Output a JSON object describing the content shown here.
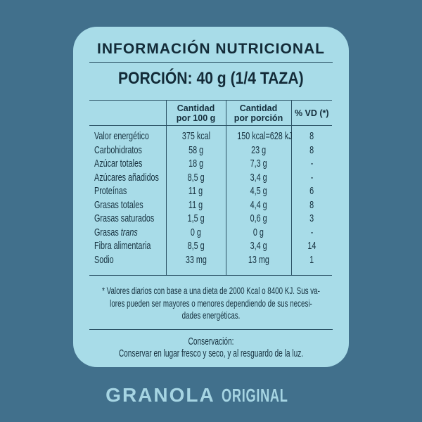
{
  "card": {
    "title": "INFORMACIÓN NUTRICIONAL",
    "portion": "PORCIÓN: 40 g (1/4 TAZA)"
  },
  "table": {
    "headers": [
      "",
      "Cantidad\npor 100 g",
      "Cantidad\npor porción",
      "% VD (*)"
    ],
    "rows": [
      {
        "label": "Valor energético",
        "per100": "375 kcal",
        "portion": "150 kcal=628 kJ",
        "vd": "8"
      },
      {
        "label": "Carbohidratos",
        "per100": "58 g",
        "portion": "23 g",
        "vd": "8"
      },
      {
        "label": "Azúcar totales",
        "per100": "18 g",
        "portion": "7,3 g",
        "vd": "-"
      },
      {
        "label": "Azúcares añadidos",
        "per100": "8,5 g",
        "portion": "3,4 g",
        "vd": "-"
      },
      {
        "label": "Proteínas",
        "per100": "11 g",
        "portion": "4,5 g",
        "vd": "6"
      },
      {
        "label": "Grasas totales",
        "per100": "11 g",
        "portion": "4,4 g",
        "vd": "8"
      },
      {
        "label": "Grasas saturados",
        "per100": "1,5 g",
        "portion": "0,6 g",
        "vd": "3"
      },
      {
        "label": "Grasas",
        "label_italic": "trans",
        "per100": "0 g",
        "portion": "0 g",
        "vd": "-"
      },
      {
        "label": "Fibra alimentaria",
        "per100": "8,5 g",
        "portion": "3,4 g",
        "vd": "14"
      },
      {
        "label": "Sodio",
        "per100": "33 mg",
        "portion": "13 mg",
        "vd": "1"
      }
    ]
  },
  "footnote": "* Valores diarios con base a una dieta de 2000 Kcal o 8400 KJ. Sus va-\nlores pueden ser mayores o menores dependiendo de sus necesi-\ndades energéticas.",
  "conservation": {
    "title": "Conservación:",
    "text": "Conservar en lugar fresco y seco, y al resguardo de la luz."
  },
  "brand": {
    "name": "GRANOLA",
    "variant": "ORIGINAL"
  },
  "colors": {
    "background": "#41708C",
    "card": "#A8DCE8",
    "text": "#16313F",
    "line": "#2B5265",
    "brand_text": "#A6D5E3"
  }
}
